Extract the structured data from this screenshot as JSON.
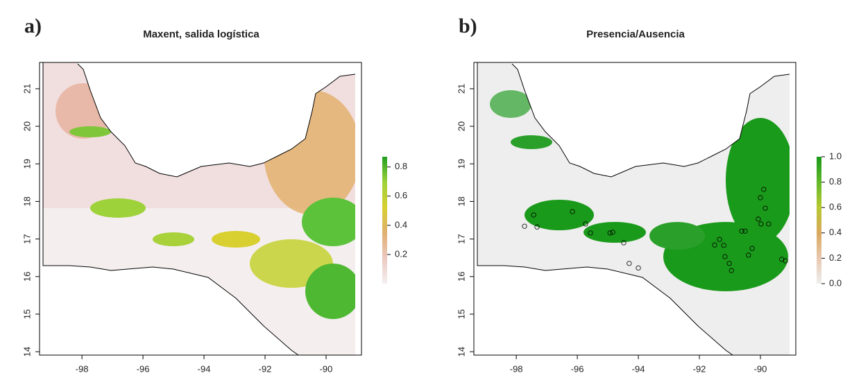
{
  "chart_data": [
    {
      "type": "raster",
      "panel_label": "a)",
      "title": "Maxent, salida logística",
      "xlim": [
        -99.39,
        -88.84
      ],
      "ylim": [
        13.91,
        21.7
      ],
      "xticks": [
        -98,
        -96,
        -94,
        -92,
        -90
      ],
      "yticks": [
        14,
        15,
        16,
        17,
        18,
        19,
        20,
        21
      ],
      "colorbar": {
        "lim": [
          0,
          0.87
        ],
        "ticks": [
          0.2,
          0.4,
          0.6,
          0.8
        ],
        "colors": [
          "#f4f0f0",
          "#ecc8c0",
          "#e0b070",
          "#d8cf30",
          "#9ed23a",
          "#1f9e1f"
        ]
      }
    },
    {
      "type": "raster",
      "panel_label": "b)",
      "title": "Presencia/Ausencia",
      "xlim": [
        -99.39,
        -88.84
      ],
      "ylim": [
        13.91,
        21.7
      ],
      "xticks": [
        -98,
        -96,
        -94,
        -92,
        -90
      ],
      "yticks": [
        14,
        15,
        16,
        17,
        18,
        19,
        20,
        21
      ],
      "colorbar": {
        "lim": [
          0,
          1
        ],
        "ticks": [
          {
            "value": 0,
            "label": "0.0"
          },
          0.2,
          0.4,
          0.6,
          0.8,
          {
            "value": 1,
            "label": "1.0"
          }
        ],
        "colors": [
          "#eeeeee",
          "#e8c8b0",
          "#d9a860",
          "#b8c830",
          "#62b82a",
          "#1a9a1a"
        ]
      },
      "points": {
        "x": [
          -97.43,
          -97.32,
          -97.73,
          -96.16,
          -95.73,
          -95.57,
          -94.93,
          -94.84,
          -94.48,
          -94.3,
          -94.0,
          -91.5,
          -91.34,
          -91.2,
          -91.16,
          -91.02,
          -90.95,
          -90.39,
          -90.27,
          -90.61,
          -90.5,
          -90.07,
          -89.98,
          -89.89,
          -90.0,
          -89.84,
          -89.73,
          -89.3,
          -89.18
        ],
        "y": [
          17.64,
          17.32,
          17.34,
          17.73,
          17.4,
          17.16,
          17.16,
          17.18,
          16.9,
          16.35,
          16.23,
          16.84,
          16.99,
          16.83,
          16.53,
          16.35,
          16.16,
          16.57,
          16.75,
          17.21,
          17.21,
          17.53,
          17.4,
          18.32,
          18.1,
          17.82,
          17.4,
          16.46,
          16.42
        ]
      }
    }
  ]
}
